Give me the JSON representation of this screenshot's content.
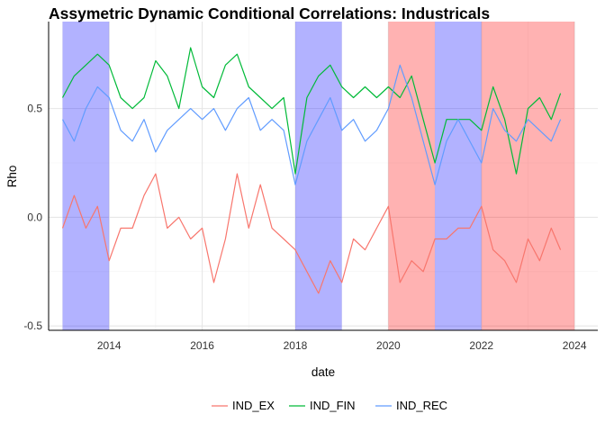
{
  "chart_data": {
    "type": "line",
    "title": "Assymetric Dynamic Conditional Correlations: Industricals",
    "xlabel": "date",
    "ylabel": "Rho",
    "xlim": [
      2012.7,
      2024.5
    ],
    "ylim": [
      -0.52,
      0.9
    ],
    "x_ticks": [
      2014,
      2016,
      2018,
      2020,
      2022,
      2024
    ],
    "x_tick_labels": [
      "2014",
      "2016",
      "2018",
      "2020",
      "2022",
      "2024"
    ],
    "y_ticks": [
      -0.5,
      0.0,
      0.5
    ],
    "y_tick_labels": [
      "-0.5",
      "0.0",
      "0.5"
    ],
    "grid": true,
    "legend_position": "bottom",
    "shaded_regions": [
      {
        "start": 2013.0,
        "end": 2014.0,
        "color": "#0000ff",
        "opacity": 0.3
      },
      {
        "start": 2018.0,
        "end": 2019.0,
        "color": "#0000ff",
        "opacity": 0.3
      },
      {
        "start": 2020.0,
        "end": 2021.0,
        "color": "#ff0000",
        "opacity": 0.3
      },
      {
        "start": 2021.0,
        "end": 2022.0,
        "color": "#0000ff",
        "opacity": 0.3
      },
      {
        "start": 2022.0,
        "end": 2024.0,
        "color": "#ff0000",
        "opacity": 0.3
      }
    ],
    "series": [
      {
        "name": "IND_EX",
        "color": "#f8766d",
        "x": [
          2013.0,
          2013.25,
          2013.5,
          2013.75,
          2014.0,
          2014.25,
          2014.5,
          2014.75,
          2015.0,
          2015.25,
          2015.5,
          2015.75,
          2016.0,
          2016.25,
          2016.5,
          2016.75,
          2017.0,
          2017.25,
          2017.5,
          2017.75,
          2018.0,
          2018.25,
          2018.5,
          2018.75,
          2019.0,
          2019.25,
          2019.5,
          2019.75,
          2020.0,
          2020.25,
          2020.5,
          2020.75,
          2021.0,
          2021.25,
          2021.5,
          2021.75,
          2022.0,
          2022.25,
          2022.5,
          2022.75,
          2023.0,
          2023.25,
          2023.5,
          2023.7
        ],
        "values": [
          -0.05,
          0.1,
          -0.05,
          0.05,
          -0.2,
          -0.05,
          -0.05,
          0.1,
          0.2,
          -0.05,
          0.0,
          -0.1,
          -0.05,
          -0.3,
          -0.1,
          0.2,
          -0.05,
          0.15,
          -0.05,
          -0.1,
          -0.15,
          -0.25,
          -0.35,
          -0.2,
          -0.3,
          -0.1,
          -0.15,
          -0.05,
          0.05,
          -0.3,
          -0.2,
          -0.25,
          -0.1,
          -0.1,
          -0.05,
          -0.05,
          0.05,
          -0.15,
          -0.2,
          -0.3,
          -0.1,
          -0.2,
          -0.05,
          -0.15
        ]
      },
      {
        "name": "IND_FIN",
        "color": "#00ba38",
        "x": [
          2013.0,
          2013.25,
          2013.5,
          2013.75,
          2014.0,
          2014.25,
          2014.5,
          2014.75,
          2015.0,
          2015.25,
          2015.5,
          2015.75,
          2016.0,
          2016.25,
          2016.5,
          2016.75,
          2017.0,
          2017.25,
          2017.5,
          2017.75,
          2018.0,
          2018.25,
          2018.5,
          2018.75,
          2019.0,
          2019.25,
          2019.5,
          2019.75,
          2020.0,
          2020.25,
          2020.5,
          2020.75,
          2021.0,
          2021.25,
          2021.5,
          2021.75,
          2022.0,
          2022.25,
          2022.5,
          2022.75,
          2023.0,
          2023.25,
          2023.5,
          2023.7
        ],
        "values": [
          0.55,
          0.65,
          0.7,
          0.75,
          0.7,
          0.55,
          0.5,
          0.55,
          0.72,
          0.65,
          0.5,
          0.78,
          0.6,
          0.55,
          0.7,
          0.75,
          0.6,
          0.55,
          0.5,
          0.55,
          0.2,
          0.55,
          0.65,
          0.7,
          0.6,
          0.55,
          0.6,
          0.55,
          0.6,
          0.55,
          0.65,
          0.45,
          0.25,
          0.45,
          0.45,
          0.45,
          0.4,
          0.6,
          0.45,
          0.2,
          0.5,
          0.55,
          0.45,
          0.57
        ]
      },
      {
        "name": "IND_REC",
        "color": "#619cff",
        "x": [
          2013.0,
          2013.25,
          2013.5,
          2013.75,
          2014.0,
          2014.25,
          2014.5,
          2014.75,
          2015.0,
          2015.25,
          2015.5,
          2015.75,
          2016.0,
          2016.25,
          2016.5,
          2016.75,
          2017.0,
          2017.25,
          2017.5,
          2017.75,
          2018.0,
          2018.25,
          2018.5,
          2018.75,
          2019.0,
          2019.25,
          2019.5,
          2019.75,
          2020.0,
          2020.25,
          2020.5,
          2020.75,
          2021.0,
          2021.25,
          2021.5,
          2021.75,
          2022.0,
          2022.25,
          2022.5,
          2022.75,
          2023.0,
          2023.25,
          2023.5,
          2023.7
        ],
        "values": [
          0.45,
          0.35,
          0.5,
          0.6,
          0.55,
          0.4,
          0.35,
          0.45,
          0.3,
          0.4,
          0.45,
          0.5,
          0.45,
          0.5,
          0.4,
          0.5,
          0.55,
          0.4,
          0.45,
          0.4,
          0.15,
          0.35,
          0.45,
          0.55,
          0.4,
          0.45,
          0.35,
          0.4,
          0.5,
          0.7,
          0.55,
          0.35,
          0.15,
          0.35,
          0.45,
          0.35,
          0.25,
          0.5,
          0.4,
          0.35,
          0.45,
          0.4,
          0.35,
          0.45
        ]
      }
    ]
  }
}
